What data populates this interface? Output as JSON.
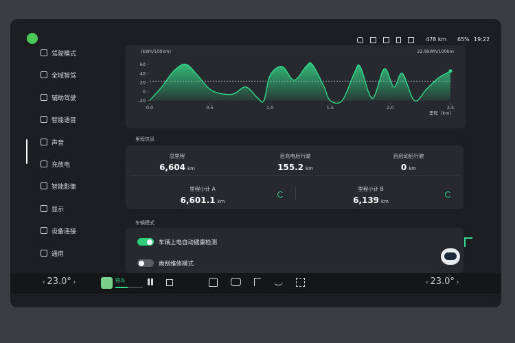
{
  "status_bar": {
    "range": "478 km",
    "battery": "65%",
    "time": "19:22"
  },
  "sidebar": {
    "items": [
      "驾驶模式",
      "全域智驾",
      "辅助驾驶",
      "智能语音",
      "声音",
      "充放电",
      "智能影像",
      "显示",
      "设备连接",
      "通用"
    ]
  },
  "chart_data": {
    "type": "line",
    "y_label": "(kWh/100km)",
    "x_label": "里程（km）",
    "color": "#35d98a",
    "average": {
      "value": 22.9,
      "label": "22.9kWh/100km"
    },
    "x": [
      0,
      0.1,
      0.2,
      0.3,
      0.4,
      0.5,
      0.6,
      0.7,
      0.8,
      0.9,
      0.95,
      1.0,
      1.1,
      1.2,
      1.3,
      1.35,
      1.45,
      1.5,
      1.6,
      1.7,
      1.75,
      1.85,
      1.95,
      2.03,
      2.1,
      2.2,
      2.3,
      2.4,
      2.5
    ],
    "values": [
      -20,
      10,
      45,
      60,
      35,
      5,
      -5,
      -5,
      10,
      -15,
      -20,
      35,
      55,
      25,
      55,
      60,
      10,
      -20,
      -20,
      40,
      55,
      -15,
      50,
      10,
      40,
      -20,
      5,
      30,
      45
    ],
    "xlim": [
      0,
      2.5
    ],
    "ylim": [
      -25,
      70
    ],
    "xticks": [
      {
        "value": 0,
        "label": "0.0"
      },
      0.5,
      {
        "value": 1,
        "label": "1.0"
      },
      1.5,
      {
        "value": 2,
        "label": "2.0"
      },
      2.5
    ],
    "yticks": [
      60,
      40,
      20,
      0,
      -20
    ]
  },
  "mileage": {
    "title": "里程信息",
    "total": {
      "label": "总里程",
      "value": "6,604",
      "unit": "km"
    },
    "since_charge": {
      "label": "自充电后行驶",
      "value": "155.2",
      "unit": "km"
    },
    "since_start": {
      "label": "自启动后行驶",
      "value": "0",
      "unit": "km"
    },
    "trip_a": {
      "label": "里程小计 A",
      "value": "6,601.1",
      "unit": "km"
    },
    "trip_b": {
      "label": "里程小计 B",
      "value": "6,139",
      "unit": "km"
    }
  },
  "vehicle_mode": {
    "title": "车辆模式",
    "items": [
      {
        "label": "车辆上电自动健康检测",
        "enabled": true
      },
      {
        "label": "雨刮维修模式",
        "enabled": false
      }
    ]
  },
  "bottom_bar": {
    "temp_left": "23.0°",
    "temp_right": "23.0°",
    "media_title": "野鸟"
  }
}
